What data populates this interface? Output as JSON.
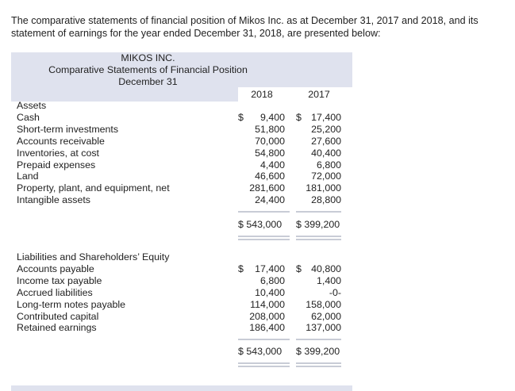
{
  "intro": "The comparative statements of financial position of Mikos Inc. as at December 31, 2017 and 2018, and its statement of earnings for the year ended December 31, 2018, are presented below:",
  "header": {
    "company": "MIKOS INC.",
    "statement": "Comparative Statements of Financial Position",
    "date": "December 31",
    "year1": "2018",
    "year2": "2017"
  },
  "assets": {
    "heading": "Assets",
    "rows": [
      {
        "label": "Cash",
        "y2018": "9,400",
        "y2017": "17,400"
      },
      {
        "label": "Short-term investments",
        "y2018": "51,800",
        "y2017": "25,200"
      },
      {
        "label": "Accounts receivable",
        "y2018": "70,000",
        "y2017": "27,600"
      },
      {
        "label": "Inventories, at cost",
        "y2018": "54,800",
        "y2017": "40,400"
      },
      {
        "label": "Prepaid expenses",
        "y2018": "4,400",
        "y2017": "6,800"
      },
      {
        "label": "Land",
        "y2018": "46,600",
        "y2017": "72,000"
      },
      {
        "label": "Property, plant, and equipment, net",
        "y2018": "281,600",
        "y2017": "181,000"
      },
      {
        "label": "Intangible assets",
        "y2018": "24,400",
        "y2017": "28,800"
      }
    ],
    "total2018": "$ 543,000",
    "total2017": "$ 399,200"
  },
  "liabilities": {
    "heading": "Liabilities and Shareholders’ Equity",
    "rows": [
      {
        "label": "Accounts payable",
        "y2018": "17,400",
        "y2017": "40,800"
      },
      {
        "label": "Income tax payable",
        "y2018": "6,800",
        "y2017": "1,400"
      },
      {
        "label": "Accrued liabilities",
        "y2018": "10,400",
        "y2017": "-0-"
      },
      {
        "label": "Long-term notes payable",
        "y2018": "114,000",
        "y2017": "158,000"
      },
      {
        "label": "Contributed capital",
        "y2018": "208,000",
        "y2017": "62,000"
      },
      {
        "label": "Retained earnings",
        "y2018": "186,400",
        "y2017": "137,000"
      }
    ],
    "total2018": "$ 543,000",
    "total2017": "$ 399,200"
  },
  "dollar_sign": "$"
}
